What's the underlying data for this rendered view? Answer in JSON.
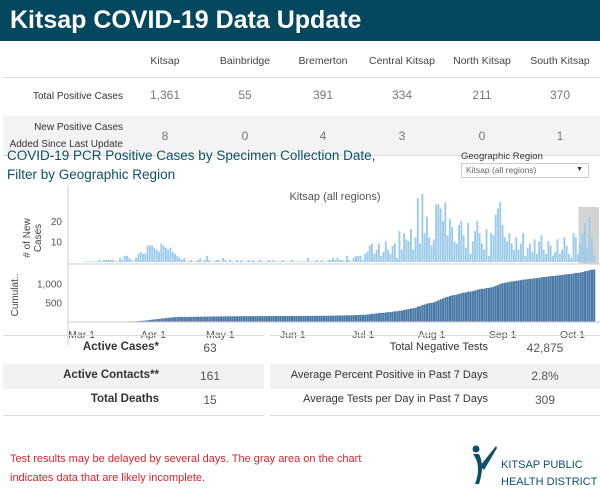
{
  "header": {
    "title": "Kitsap COVID-19 Data Update"
  },
  "summary_table": {
    "columns": [
      "Kitsap",
      "Bainbridge",
      "Bremerton",
      "Central Kitsap",
      "North Kitsap",
      "South Kitsap"
    ],
    "rows": [
      {
        "label": "Total Positive Cases",
        "values": [
          "1,361",
          "55",
          "391",
          "334",
          "211",
          "370"
        ]
      },
      {
        "label_line1": "New Positive Cases",
        "label_line2": "Added Since Last Update",
        "values": [
          "8",
          "0",
          "4",
          "3",
          "0",
          "1"
        ]
      }
    ]
  },
  "chart_section": {
    "title_line1": "COVID-19 PCR Positive Cases by Specimen Collection Date,",
    "title_line2": "Filter by Geographic Region",
    "filter_label": "Geographic Region",
    "filter_value": "Kitsap (all regions)"
  },
  "chart_data": {
    "type": "bar",
    "title": "Kitsap (all regions)",
    "start_date": "2020-02-26",
    "x_ticks": [
      {
        "label": "Mar 1",
        "day": 4
      },
      {
        "label": "Apr 1",
        "day": 35
      },
      {
        "label": "May 1",
        "day": 65
      },
      {
        "label": "Jun 1",
        "day": 96
      },
      {
        "label": "Jul 1",
        "day": 126
      },
      {
        "label": "Aug 1",
        "day": 157
      },
      {
        "label": "Sep 1",
        "day": 188
      },
      {
        "label": "Oct 1",
        "day": 218
      }
    ],
    "incomplete_from_day": 216,
    "panels": [
      {
        "name": "new_cases",
        "ylabel_line1": "# of New",
        "ylabel_line2": "Cases",
        "y_ticks": [
          "10",
          "20"
        ],
        "y_tick_values": [
          10,
          20
        ],
        "ylim": [
          0,
          35
        ],
        "color": "#9dcbea"
      },
      {
        "name": "cumulative",
        "ylabel": "Cumulat..",
        "y_ticks": [
          "500",
          "1,000"
        ],
        "y_tick_values": [
          500,
          1000
        ],
        "ylim": [
          0,
          1450
        ],
        "color": "#4a79a8"
      }
    ],
    "daily_new_cases": [
      0,
      0,
      0,
      0,
      0,
      0,
      1,
      0,
      1,
      1,
      1,
      1,
      1,
      0,
      0,
      2,
      1,
      3,
      3,
      2,
      1,
      0,
      2,
      4,
      5,
      4,
      4,
      8,
      8,
      8,
      7,
      6,
      5,
      9,
      8,
      7,
      6,
      7,
      5,
      4,
      3,
      2,
      1,
      2,
      0,
      0,
      1,
      0,
      0,
      1,
      2,
      0,
      1,
      3,
      1,
      0,
      0,
      1,
      1,
      0,
      2,
      1,
      0,
      1,
      0,
      0,
      1,
      0,
      1,
      0,
      0,
      1,
      0,
      1,
      0,
      0,
      1,
      0,
      0,
      0,
      1,
      0,
      1,
      0,
      0,
      0,
      1,
      0,
      0,
      0,
      1,
      0,
      0,
      0,
      0,
      0,
      0,
      2,
      0,
      0,
      0,
      1,
      0,
      1,
      0,
      0,
      1,
      1,
      2,
      1,
      2,
      1,
      1,
      0,
      3,
      1,
      0,
      2,
      3,
      3,
      3,
      1,
      4,
      5,
      8,
      9,
      4,
      6,
      9,
      3,
      5,
      10,
      6,
      4,
      8,
      9,
      2,
      15,
      6,
      14,
      11,
      10,
      16,
      6,
      12,
      31,
      9,
      33,
      14,
      22,
      12,
      8,
      11,
      28,
      28,
      26,
      20,
      29,
      13,
      21,
      17,
      10,
      9,
      18,
      20,
      13,
      7,
      19,
      4,
      10,
      15,
      20,
      14,
      9,
      6,
      16,
      3,
      14,
      13,
      23,
      26,
      29,
      18,
      12,
      10,
      14,
      9,
      6,
      12,
      6,
      9,
      14,
      3,
      7,
      9,
      5,
      11,
      4,
      10,
      13,
      6,
      4,
      10,
      8,
      3,
      5,
      11,
      4,
      6,
      12,
      8,
      4,
      2,
      14,
      12,
      4,
      9,
      14,
      19,
      7,
      22,
      12,
      3
    ]
  },
  "stats_left": [
    {
      "label": "Active Cases*",
      "value": "63"
    },
    {
      "label": "Active Contacts**",
      "value": "161"
    },
    {
      "label": "Total Deaths",
      "value": "15"
    }
  ],
  "stats_right": [
    {
      "label": "Total Negative Tests",
      "value": "42,875"
    },
    {
      "label": "Average Percent Positive in Past 7 Days",
      "value": "2.8%"
    },
    {
      "label": "Average Tests per Day in Past 7 Days",
      "value": "309"
    }
  ],
  "footer": {
    "note": "Test results may be delayed by several days. The gray area on the chart indicates data that are likely incomplete.",
    "logo_line1": "KITSAP PUBLIC",
    "logo_line2": "HEALTH DISTRICT"
  }
}
